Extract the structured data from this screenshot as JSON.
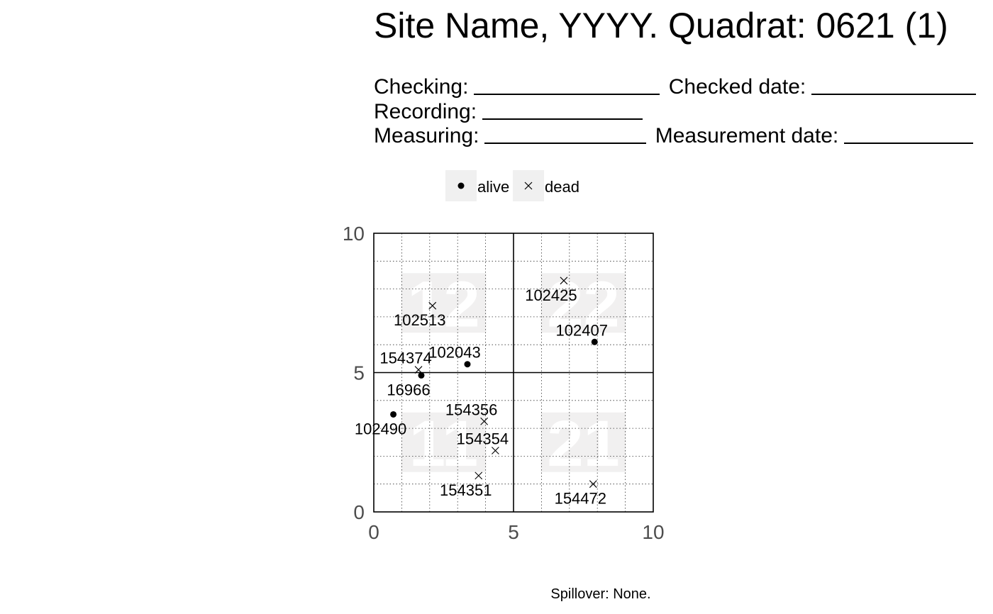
{
  "header": {
    "title": "Site Name, YYYY. Quadrat: 0621 (1)",
    "checking_label": "Checking:",
    "checked_date_label": "Checked date:",
    "recording_label": "Recording:",
    "measuring_label": "Measuring:",
    "measurement_date_label": "Measurement date:"
  },
  "chart_data": {
    "type": "scatter",
    "legend": {
      "position": "top",
      "entries": [
        {
          "label": "alive",
          "marker": "dot"
        },
        {
          "label": "dead",
          "marker": "x"
        }
      ]
    },
    "xlim": [
      0,
      10
    ],
    "ylim": [
      0,
      10
    ],
    "x_ticks": [
      "0",
      "5",
      "10"
    ],
    "y_ticks": [
      "0",
      "5",
      "10"
    ],
    "minor_grid_step": 1,
    "major_divider": 5,
    "grid": true,
    "subquadrats": [
      {
        "label": "11",
        "x": 2.5,
        "y": 2.5
      },
      {
        "label": "12",
        "x": 2.5,
        "y": 7.5
      },
      {
        "label": "21",
        "x": 7.5,
        "y": 2.5
      },
      {
        "label": "22",
        "x": 7.5,
        "y": 7.5
      }
    ],
    "points": [
      {
        "tag": "102425",
        "x": 6.8,
        "y": 8.3,
        "status": "dead",
        "label_dir": "below"
      },
      {
        "tag": "102513",
        "x": 2.1,
        "y": 7.4,
        "status": "dead",
        "label_dir": "below"
      },
      {
        "tag": "102407",
        "x": 7.9,
        "y": 6.1,
        "status": "alive",
        "label_dir": "above"
      },
      {
        "tag": "154374",
        "x": 1.6,
        "y": 5.1,
        "status": "dead",
        "label_dir": "above"
      },
      {
        "tag": "102043",
        "x": 3.35,
        "y": 5.3,
        "status": "alive",
        "label_dir": "above"
      },
      {
        "tag": "16966",
        "x": 1.7,
        "y": 4.9,
        "status": "alive",
        "label_dir": "below"
      },
      {
        "tag": "102490",
        "x": 0.7,
        "y": 3.5,
        "status": "alive",
        "label_dir": "below"
      },
      {
        "tag": "154356",
        "x": 3.95,
        "y": 3.25,
        "status": "dead",
        "label_dir": "above"
      },
      {
        "tag": "154354",
        "x": 4.35,
        "y": 2.2,
        "status": "dead",
        "label_dir": "above"
      },
      {
        "tag": "154351",
        "x": 3.75,
        "y": 1.3,
        "status": "dead",
        "label_dir": "below"
      },
      {
        "tag": "154472",
        "x": 7.85,
        "y": 1.0,
        "status": "dead",
        "label_dir": "below"
      }
    ]
  },
  "footer": {
    "spillover": "Spillover: None."
  }
}
